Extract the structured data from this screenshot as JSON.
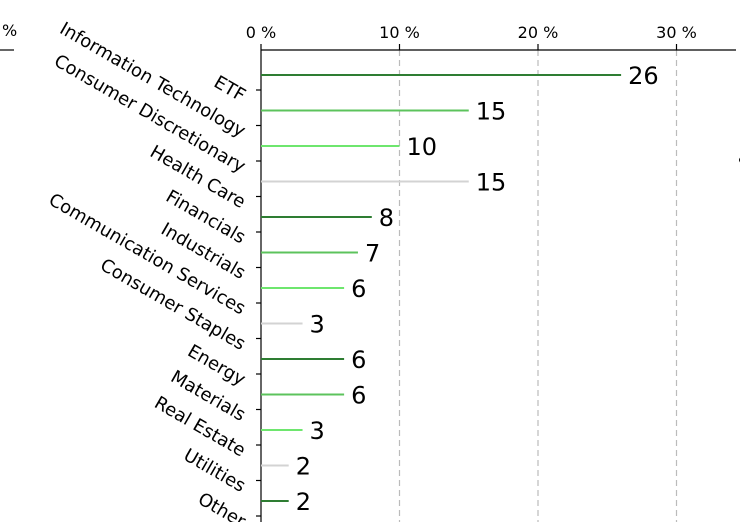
{
  "chart_data": {
    "type": "bar",
    "orientation": "horizontal",
    "title": "",
    "xlabel": "",
    "ylabel": "",
    "x_ticks": [
      {
        "value": 0,
        "label": "0 %"
      },
      {
        "value": 10,
        "label": "10 %"
      },
      {
        "value": 20,
        "label": "20 %"
      },
      {
        "value": 30,
        "label": "30 %"
      }
    ],
    "x_unit": "%",
    "xlim": [
      0,
      34
    ],
    "grid": "vertical dashed",
    "categories": [
      "ETF",
      "Information Technology",
      "Consumer Discretionary",
      "Health Care",
      "Financials",
      "Industrials",
      "Communication Services",
      "Consumer Staples",
      "Energy",
      "Materials",
      "Real Estate",
      "Utilities",
      "Other"
    ],
    "series": [
      {
        "values": [
          26,
          15,
          10,
          15,
          8,
          7,
          6,
          3,
          6,
          6,
          3,
          2,
          2
        ],
        "colors": [
          "#2e7d32",
          "#5cc35c",
          "#6ee66e",
          "#d3d3d3",
          "#2e7d32",
          "#5cc35c",
          "#6ee66e",
          "#d3d3d3",
          "#2e7d32",
          "#5cc35c",
          "#6ee66e",
          "#d3d3d3",
          "#2e7d32"
        ]
      }
    ],
    "data_labels": [
      "26",
      "15",
      "10",
      "15",
      "8",
      "7",
      "6",
      "3",
      "6",
      "6",
      "3",
      "2",
      "2"
    ]
  }
}
